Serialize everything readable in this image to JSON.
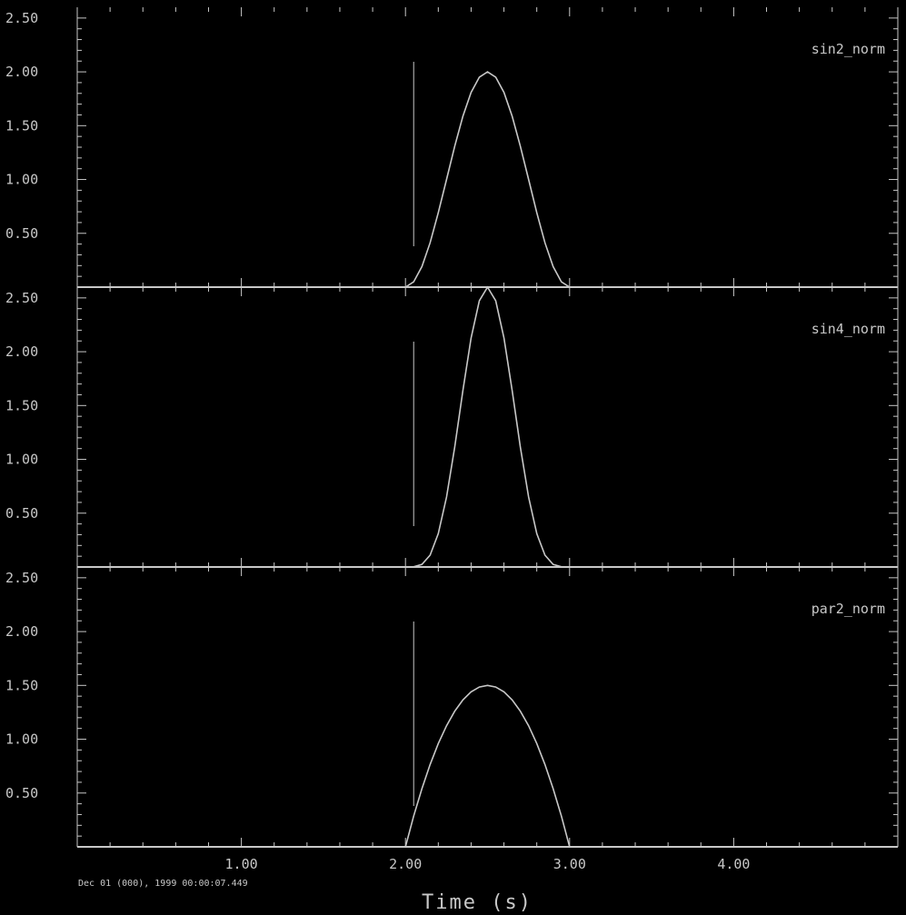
{
  "chart_data": [
    {
      "type": "line",
      "series": [
        {
          "name": "sin2_norm",
          "x": [],
          "y": []
        }
      ],
      "xlim": [
        0.0,
        5.0
      ],
      "ylim": [
        0.0,
        2.6
      ],
      "yticks": [
        "2.50",
        "2.00",
        "1.50",
        "1.00",
        "0.50"
      ],
      "marker_x": 2.05
    },
    {
      "type": "line",
      "series": [
        {
          "name": "sin4_norm",
          "x": [],
          "y": []
        }
      ],
      "xlim": [
        0.0,
        5.0
      ],
      "ylim": [
        0.0,
        2.6
      ],
      "yticks": [
        "2.50",
        "2.00",
        "1.50",
        "1.00",
        "0.50"
      ],
      "marker_x": 2.05
    },
    {
      "type": "line",
      "series": [
        {
          "name": "par2_norm",
          "x": [],
          "y": []
        }
      ],
      "xlim": [
        0.0,
        5.0
      ],
      "ylim": [
        0.0,
        2.6
      ],
      "yticks": [
        "2.50",
        "2.00",
        "1.50",
        "1.00",
        "0.50"
      ],
      "xticks": [
        "1.00",
        "2.00",
        "3.00",
        "4.00"
      ],
      "marker_x": 2.05
    }
  ],
  "xlabel": "Time (s)",
  "footer": "Dec 01 (000), 1999 00:00:07.449",
  "colors": {
    "background": "#000000",
    "foreground": "#c8c8c8"
  }
}
